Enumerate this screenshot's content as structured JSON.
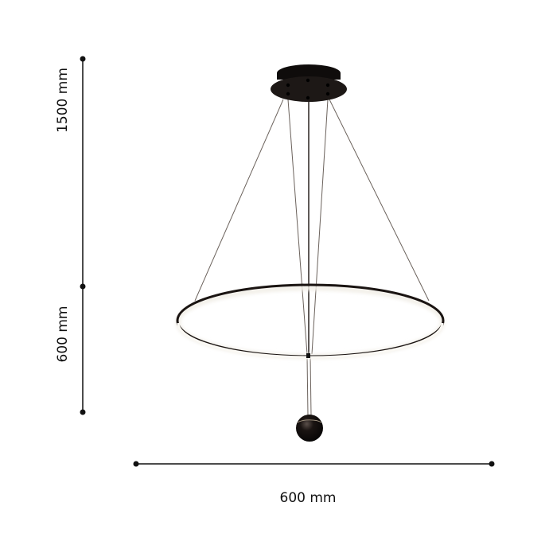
{
  "dimensions": {
    "total_height_label": "1500 mm",
    "ring_drop_label": "600 mm",
    "width_label": "600 mm"
  },
  "colors": {
    "lamp_body": "#1a1412",
    "dimension_line": "#111111",
    "wire": "#6b625c"
  }
}
